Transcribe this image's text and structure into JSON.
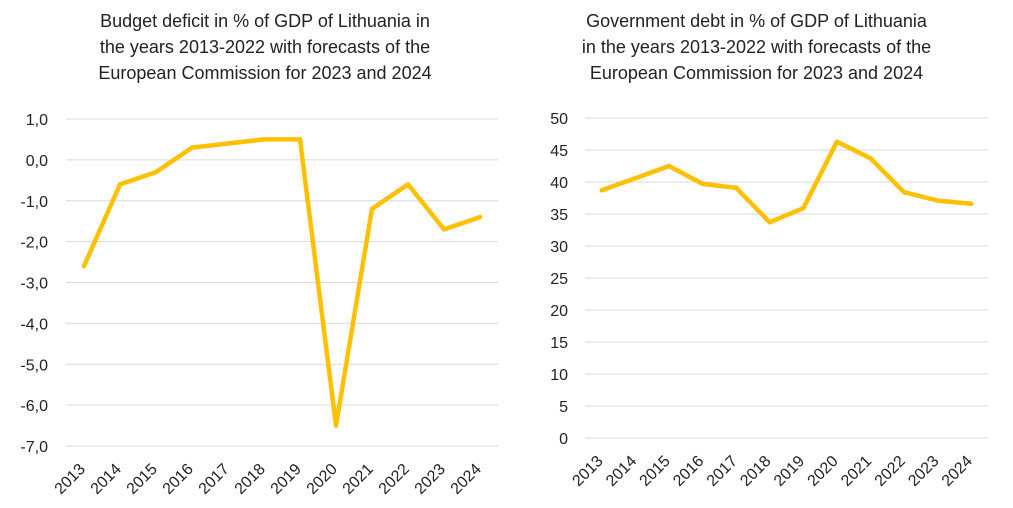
{
  "chart_data": [
    {
      "type": "line",
      "title_lines": [
        "Budget deficit in % of GDP  of Lithuania in",
        "the years 2013-2022 with forecasts of the",
        "European Commission for 2023 and 2024"
      ],
      "categories": [
        "2013",
        "2014",
        "2015",
        "2016",
        "2017",
        "2018",
        "2019",
        "2020",
        "2021",
        "2022",
        "2023",
        "2024"
      ],
      "series": [
        {
          "values": [
            -2.6,
            -0.6,
            -0.3,
            0.3,
            0.4,
            0.5,
            0.5,
            -6.5,
            -1.2,
            -0.6,
            -1.7,
            -1.4
          ],
          "color": "#FFC000"
        }
      ],
      "y_ticks": [
        "1,0",
        "0,0",
        "-1,0",
        "-2,0",
        "-3,0",
        "-4,0",
        "-5,0",
        "-6,0",
        "-7,0"
      ],
      "y_tick_values": [
        1,
        0,
        -1,
        -2,
        -3,
        -4,
        -5,
        -6,
        -7
      ],
      "ylim": [
        -7,
        1
      ],
      "grid": true,
      "xlabel": "",
      "ylabel": ""
    },
    {
      "type": "line",
      "title_lines": [
        "Government debt in % of GDP of Lithuania",
        "in the years 2013-2022 with forecasts of the",
        "European Commission for 2023 and 2024"
      ],
      "categories": [
        "2013",
        "2014",
        "2015",
        "2016",
        "2017",
        "2018",
        "2019",
        "2020",
        "2021",
        "2022",
        "2023",
        "2024"
      ],
      "series": [
        {
          "values": [
            38.7,
            40.6,
            42.5,
            39.7,
            39.1,
            33.7,
            35.9,
            46.3,
            43.7,
            38.4,
            37.1,
            36.6
          ],
          "color": "#FFC000"
        }
      ],
      "y_ticks": [
        "50",
        "45",
        "40",
        "35",
        "30",
        "25",
        "20",
        "15",
        "10",
        "5",
        "0"
      ],
      "y_tick_values": [
        50,
        45,
        40,
        35,
        30,
        25,
        20,
        15,
        10,
        5,
        0
      ],
      "ylim": [
        0,
        50
      ],
      "grid": true,
      "xlabel": "",
      "ylabel": ""
    }
  ]
}
